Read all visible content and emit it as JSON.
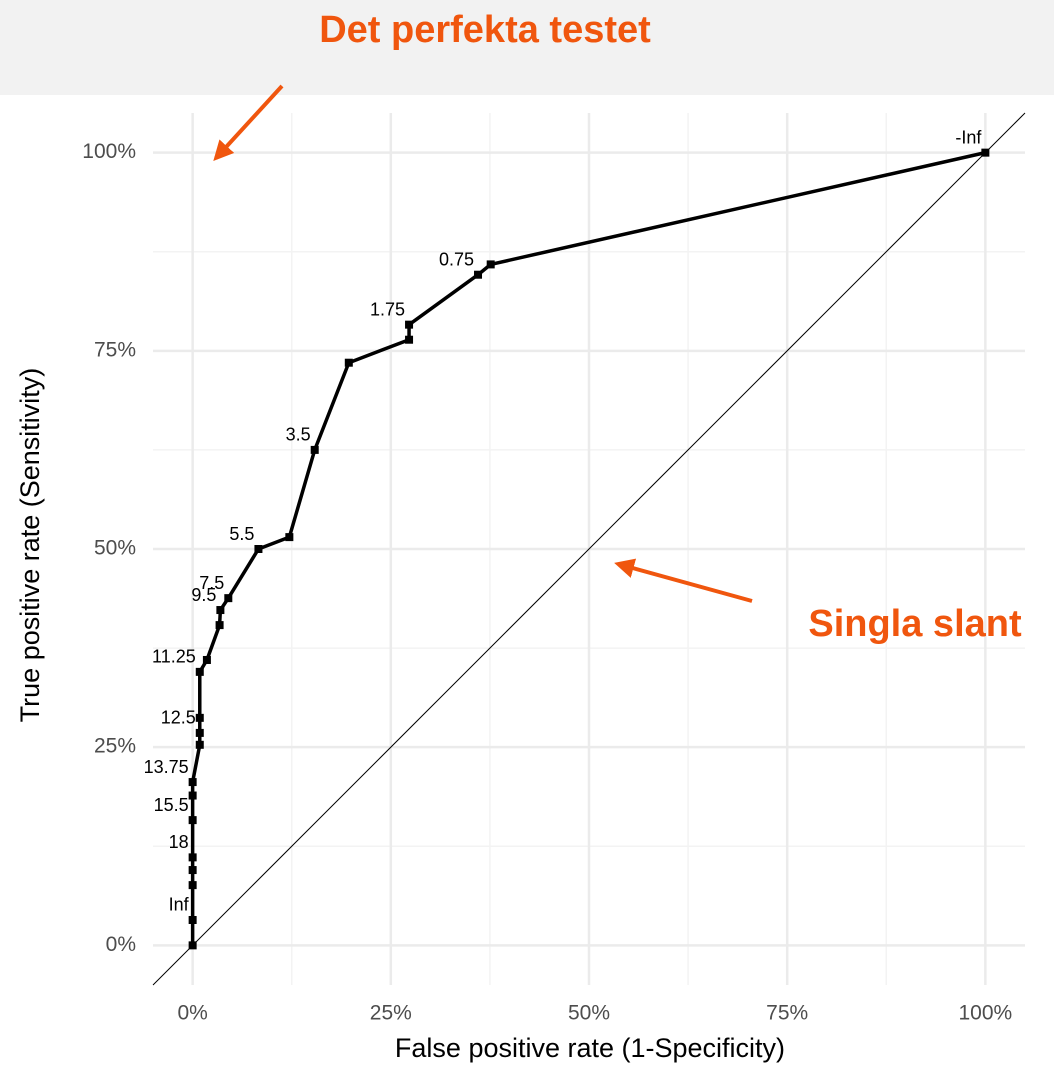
{
  "chart_data": {
    "type": "line",
    "x_label": "False positive rate (1-Specificity)",
    "y_label": "True positive rate (Sensitivity)",
    "x": [
      0,
      0,
      0,
      0,
      0,
      0,
      0,
      0,
      0.9,
      0.9,
      0.9,
      0.9,
      1.8,
      3.4,
      3.5,
      4.5,
      8.3,
      12.2,
      15.4,
      19.7,
      27.3,
      27.3,
      36,
      37.6,
      100
    ],
    "y": [
      0,
      3.2,
      7.6,
      9.5,
      11.1,
      15.8,
      18.9,
      20.6,
      25.3,
      26.8,
      28.7,
      34.5,
      36,
      40.4,
      42.3,
      43.8,
      50,
      51.5,
      62.5,
      73.5,
      76.4,
      78.3,
      84.6,
      85.9,
      100
    ],
    "point_labels": [
      null,
      "Inf",
      null,
      null,
      "18",
      "15.5",
      null,
      "13.75",
      null,
      "12.5",
      null,
      "11.25",
      null,
      null,
      "9.5",
      "7.5",
      "5.5",
      null,
      "3.5",
      null,
      null,
      "1.75",
      "0.75",
      null,
      "-Inf"
    ],
    "color": "#000000",
    "xlim": [
      -5,
      105
    ],
    "ylim": [
      -5,
      105
    ],
    "xticks": [
      {
        "value": 0,
        "label": "0%"
      },
      {
        "value": 25,
        "label": "25%"
      },
      {
        "value": 50,
        "label": "50%"
      },
      {
        "value": 75,
        "label": "75%"
      },
      {
        "value": 100,
        "label": "100%"
      }
    ],
    "yticks": [
      {
        "value": 0,
        "label": "0%"
      },
      {
        "value": 25,
        "label": "25%"
      },
      {
        "value": 50,
        "label": "50%"
      },
      {
        "value": 75,
        "label": "75%"
      },
      {
        "value": 100,
        "label": "100%"
      }
    ],
    "minor_ticks": [
      12.5,
      37.5,
      62.5,
      87.5
    ],
    "grid": true,
    "diagonal": true,
    "annotations": [
      "Det perfekta testet",
      "Singla slant"
    ]
  }
}
